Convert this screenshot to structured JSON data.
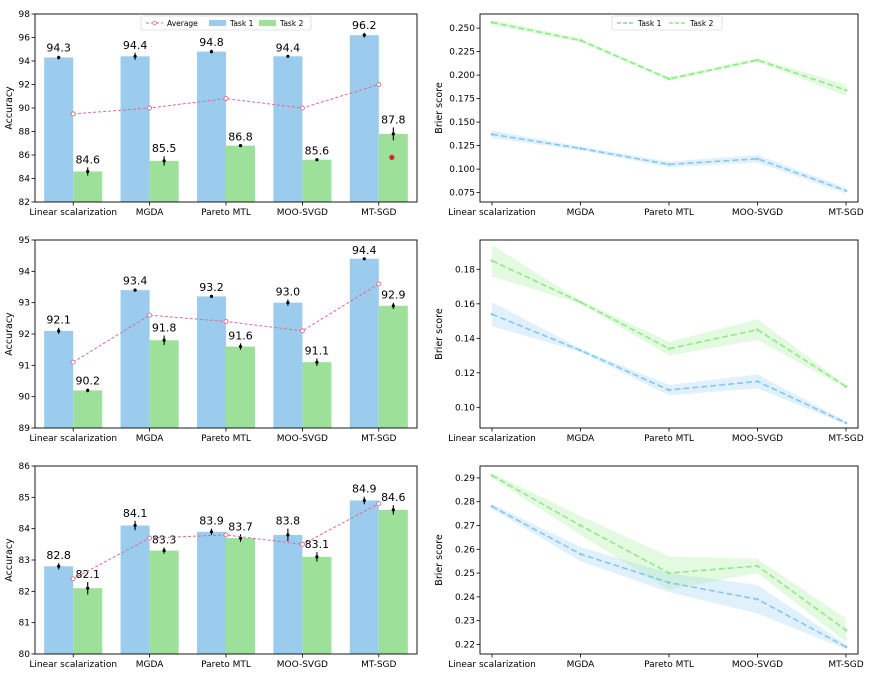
{
  "chart_data": [
    {
      "type": "bar",
      "categories": [
        "Linear scalarization",
        "MGDA",
        "Pareto MTL",
        "MOO-SVGD",
        "MT-SGD"
      ],
      "series": [
        {
          "name": "Task 1",
          "values": [
            94.3,
            94.4,
            94.8,
            94.4,
            96.2
          ],
          "errors": [
            0.15,
            0.3,
            0.15,
            0.05,
            0.2
          ]
        },
        {
          "name": "Task 2",
          "values": [
            84.6,
            85.5,
            86.8,
            85.6,
            87.8
          ],
          "errors": [
            0.35,
            0.4,
            0.1,
            0.1,
            0.55
          ]
        },
        {
          "name": "Average",
          "values": [
            89.5,
            90.0,
            90.8,
            90.0,
            92.0
          ]
        }
      ],
      "extra_point": {
        "category": "MT-SGD",
        "value": 85.8,
        "color": "#d62728"
      },
      "bar_labels": [
        [
          "94.3",
          "94.4",
          "94.8",
          "94.4",
          "96.2"
        ],
        [
          "84.6",
          "85.5",
          "86.8",
          "85.6",
          "87.8"
        ]
      ],
      "ylabel": "Accuracy",
      "ylim": [
        82,
        98
      ],
      "yticks": [
        "82",
        "84",
        "86",
        "88",
        "90",
        "92",
        "94",
        "96",
        "98"
      ],
      "legend": [
        "Average",
        "Task 1",
        "Task 2"
      ],
      "legend_position": "top-center"
    },
    {
      "type": "line",
      "categories": [
        "Linear scalarization",
        "MGDA",
        "Pareto MTL",
        "MOO-SVGD",
        "MT-SGD"
      ],
      "series": [
        {
          "name": "Task 1",
          "values": [
            0.137,
            0.122,
            0.105,
            0.111,
            0.077
          ],
          "band": [
            0.004,
            0.002,
            0.003,
            0.004,
            0.003
          ]
        },
        {
          "name": "Task 2",
          "values": [
            0.256,
            0.237,
            0.196,
            0.216,
            0.184
          ],
          "band": [
            0.003,
            0.002,
            0.002,
            0.002,
            0.006
          ]
        }
      ],
      "ylabel": "Brier score",
      "ylim": [
        0.065,
        0.265
      ],
      "yticks": [
        "0.075",
        "0.100",
        "0.125",
        "0.150",
        "0.175",
        "0.200",
        "0.225",
        "0.250"
      ],
      "legend": [
        "Task 1",
        "Task 2"
      ],
      "legend_position": "top-center"
    },
    {
      "type": "bar",
      "categories": [
        "Linear scalarization",
        "MGDA",
        "Pareto MTL",
        "MOO-SVGD",
        "MT-SGD"
      ],
      "series": [
        {
          "name": "Task 1",
          "values": [
            92.1,
            93.4,
            93.2,
            93.0,
            94.4
          ],
          "errors": [
            0.1,
            0.05,
            0.05,
            0.1,
            0.02
          ]
        },
        {
          "name": "Task 2",
          "values": [
            90.2,
            91.8,
            91.6,
            91.1,
            92.9
          ],
          "errors": [
            0.06,
            0.15,
            0.1,
            0.12,
            0.1
          ]
        },
        {
          "name": "Average",
          "values": [
            91.1,
            92.6,
            92.4,
            92.1,
            93.6
          ]
        }
      ],
      "bar_labels": [
        [
          "92.1",
          "93.4",
          "93.2",
          "93.0",
          "94.4"
        ],
        [
          "90.2",
          "91.8",
          "91.6",
          "91.1",
          "92.9"
        ]
      ],
      "ylabel": "Accuracy",
      "ylim": [
        89,
        95
      ],
      "yticks": [
        "89",
        "90",
        "91",
        "92",
        "93",
        "94",
        "95"
      ]
    },
    {
      "type": "line",
      "categories": [
        "Linear scalarization",
        "MGDA",
        "Pareto MTL",
        "MOO-SVGD",
        "MT-SGD"
      ],
      "series": [
        {
          "name": "Task 1",
          "values": [
            0.154,
            0.133,
            0.11,
            0.115,
            0.091
          ],
          "band": [
            0.007,
            0.001,
            0.003,
            0.004,
            0.001
          ]
        },
        {
          "name": "Task 2",
          "values": [
            0.185,
            0.161,
            0.134,
            0.145,
            0.112
          ],
          "band": [
            0.009,
            0.001,
            0.004,
            0.006,
            0.001
          ]
        }
      ],
      "ylabel": "Brier score",
      "ylim": [
        0.088,
        0.197
      ],
      "yticks": [
        "0.10",
        "0.12",
        "0.14",
        "0.16",
        "0.18"
      ]
    },
    {
      "type": "bar",
      "categories": [
        "Linear scalarization",
        "MGDA",
        "Pareto MTL",
        "MOO-SVGD",
        "MT-SGD"
      ],
      "series": [
        {
          "name": "Task 1",
          "values": [
            82.8,
            84.1,
            83.9,
            83.8,
            84.9
          ],
          "errors": [
            0.1,
            0.15,
            0.1,
            0.2,
            0.12
          ]
        },
        {
          "name": "Task 2",
          "values": [
            82.1,
            83.3,
            83.7,
            83.1,
            84.6
          ],
          "errors": [
            0.2,
            0.1,
            0.12,
            0.15,
            0.15
          ]
        },
        {
          "name": "Average",
          "values": [
            82.4,
            83.7,
            83.8,
            83.5,
            84.8
          ]
        }
      ],
      "bar_labels": [
        [
          "82.8",
          "84.1",
          "83.9",
          "83.8",
          "84.9"
        ],
        [
          "82.1",
          "83.3",
          "83.7",
          "83.1",
          "84.6"
        ]
      ],
      "ylabel": "Accuracy",
      "ylim": [
        80,
        86
      ],
      "yticks": [
        "80",
        "81",
        "82",
        "83",
        "84",
        "85",
        "86"
      ]
    },
    {
      "type": "line",
      "categories": [
        "Linear scalarization",
        "MGDA",
        "Pareto MTL",
        "MOO-SVGD",
        "MT-SGD"
      ],
      "series": [
        {
          "name": "Task 1",
          "values": [
            0.278,
            0.258,
            0.246,
            0.239,
            0.219
          ],
          "band": [
            0.001,
            0.003,
            0.004,
            0.006,
            0.001
          ]
        },
        {
          "name": "Task 2",
          "values": [
            0.291,
            0.27,
            0.25,
            0.253,
            0.226
          ],
          "band": [
            0.001,
            0.004,
            0.007,
            0.003,
            0.005
          ]
        }
      ],
      "ylabel": "Brier score",
      "ylim": [
        0.216,
        0.295
      ],
      "yticks": [
        "0.22",
        "0.23",
        "0.24",
        "0.25",
        "0.26",
        "0.27",
        "0.28",
        "0.29"
      ]
    }
  ],
  "colors": {
    "task1_bar": "#9bcced",
    "task2_bar": "#9de09a",
    "average": "#e06b8f",
    "task1_line": "#84c8f2",
    "task2_line": "#8feb88"
  }
}
